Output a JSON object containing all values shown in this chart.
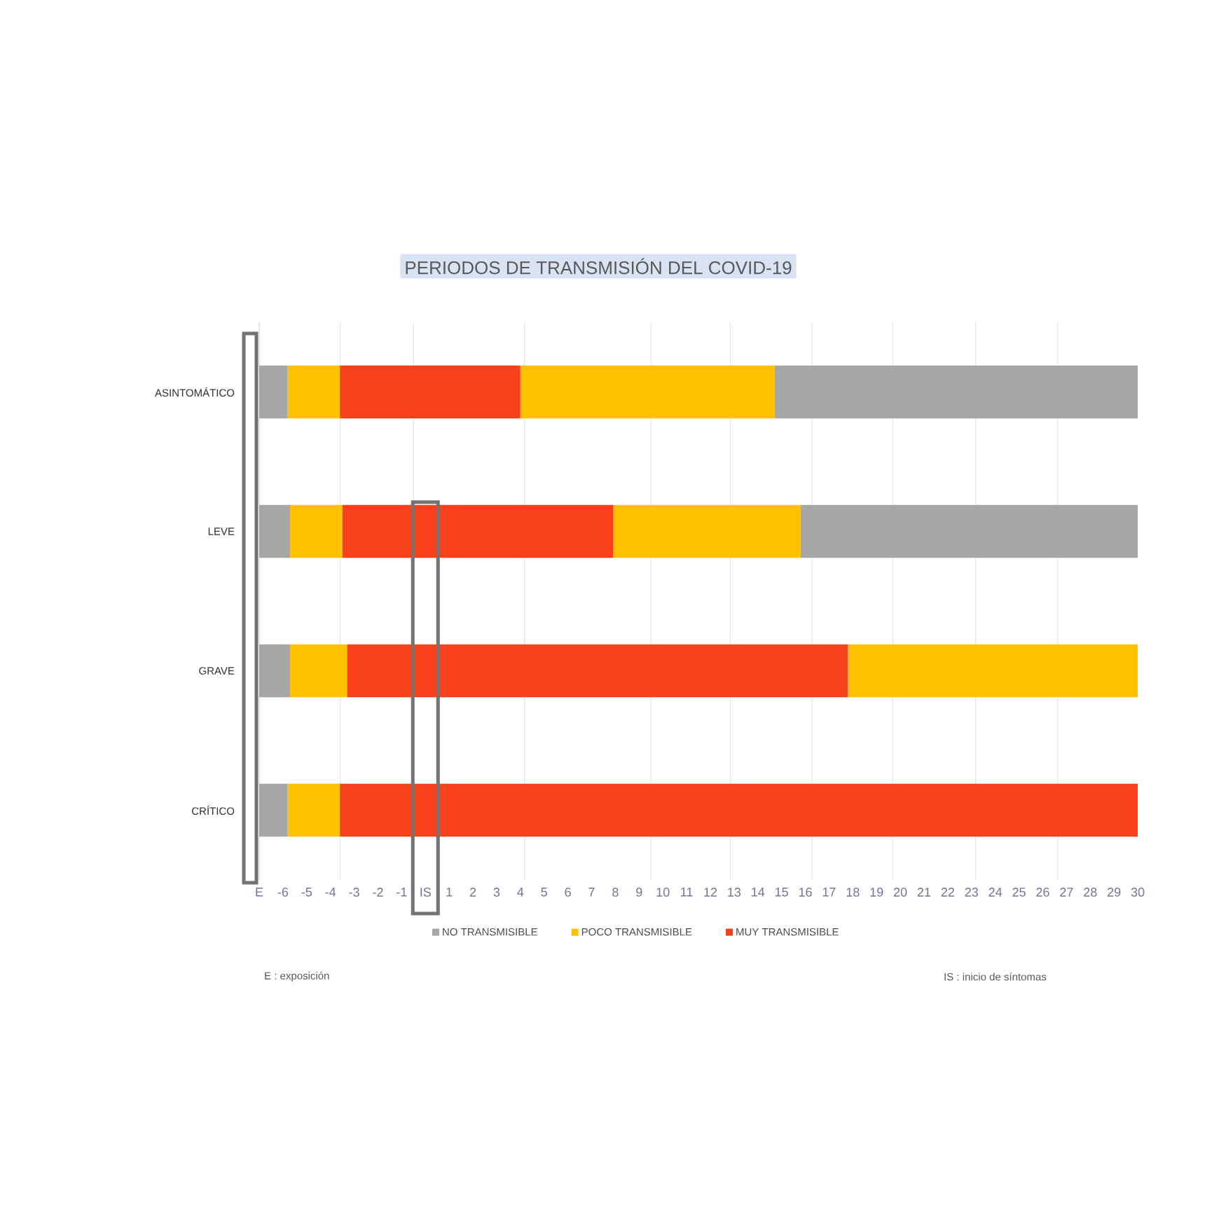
{
  "chart_data": {
    "type": "bar",
    "orientation": "horizontal",
    "title": "PERIODOS DE TRANSMISIÓN DEL COVID-19",
    "categories": [
      "ASINTOMÁTICO",
      "LEVE",
      "GRAVE",
      "CRÍTICO"
    ],
    "series": [
      {
        "name": "NO TRANSMISIBLE",
        "color": "#a6a6a6",
        "base": [
          -7,
          -7,
          -7,
          -7
        ],
        "values": [
          1.2,
          1.3,
          1.3,
          1.2
        ]
      },
      {
        "name": "POCO TRANSMISIBLE",
        "color": "#ffc000",
        "base": [
          -5.8,
          -5.7,
          -5.7,
          -5.8
        ],
        "values": [
          2.2,
          2.2,
          2.4,
          2.2
        ]
      },
      {
        "name": "MUY TRANSMISIBLE",
        "color": "#f8401a",
        "base": [
          -3.6,
          -3.5,
          -3.3,
          -3.6
        ],
        "values": [
          7.6,
          11.4,
          21.1,
          33.6
        ]
      },
      {
        "color": "#ffc000",
        "base": [
          4,
          7.9,
          17.8,
          null
        ],
        "values": [
          10.7,
          7.9,
          12.2,
          null
        ]
      },
      {
        "color": "#a6a6a6",
        "base": [
          14.7,
          15.8,
          null,
          null
        ],
        "values": [
          15.3,
          14.2,
          null,
          null
        ]
      }
    ],
    "xlim": [
      -7,
      30
    ],
    "xticks": [
      {
        "value": -7,
        "label": "E"
      },
      -6,
      -5,
      -4,
      -3,
      -2,
      -1,
      {
        "value": 0,
        "label": "IS"
      },
      1,
      2,
      3,
      4,
      5,
      6,
      7,
      8,
      9,
      10,
      11,
      12,
      13,
      14,
      15,
      16,
      17,
      18,
      19,
      20,
      21,
      22,
      23,
      24,
      25,
      26,
      27,
      28,
      29,
      30,
      {
        "value": -3.59,
        "label": null
      },
      {
        "value": -0.5,
        "label": null
      },
      {
        "value": 4.17,
        "label": null
      },
      {
        "value": 9.5,
        "label": null
      },
      {
        "value": 12.84,
        "label": null
      },
      {
        "value": 16.28,
        "label": null
      },
      {
        "value": 19.68,
        "label": null
      },
      {
        "value": 23.17,
        "label": null
      },
      {
        "value": 26.63,
        "label": null
      }
    ],
    "grid": "x",
    "legend": "bottom",
    "annotations": [
      "E : exposición",
      "IS : inicio de síntomas"
    ]
  }
}
